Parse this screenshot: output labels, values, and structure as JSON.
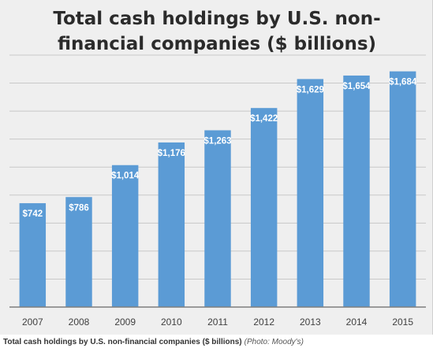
{
  "chart_data": {
    "type": "bar",
    "title": "Total cash holdings by U.S. non-financial companies ($ billions)",
    "categories": [
      "2007",
      "2008",
      "2009",
      "2010",
      "2011",
      "2012",
      "2013",
      "2014",
      "2015"
    ],
    "values": [
      742,
      786,
      1014,
      1176,
      1263,
      1422,
      1629,
      1654,
      1684
    ],
    "data_labels": [
      "$742",
      "$786",
      "$1,014",
      "$1,176",
      "$1,263",
      "$1,422",
      "$1,629",
      "$1,654",
      "$1,684"
    ],
    "xlabel": "",
    "ylabel": "",
    "ylim": [
      0,
      1800
    ],
    "grid": true,
    "legend": "none",
    "colors": {
      "bar": "#5b9bd5",
      "background": "#efefef",
      "grid": "#c8c8c8"
    }
  },
  "caption": {
    "text": "Total cash holdings by U.S. non-financial companies ($ billions)",
    "credit": "(Photo: Moody's)"
  }
}
